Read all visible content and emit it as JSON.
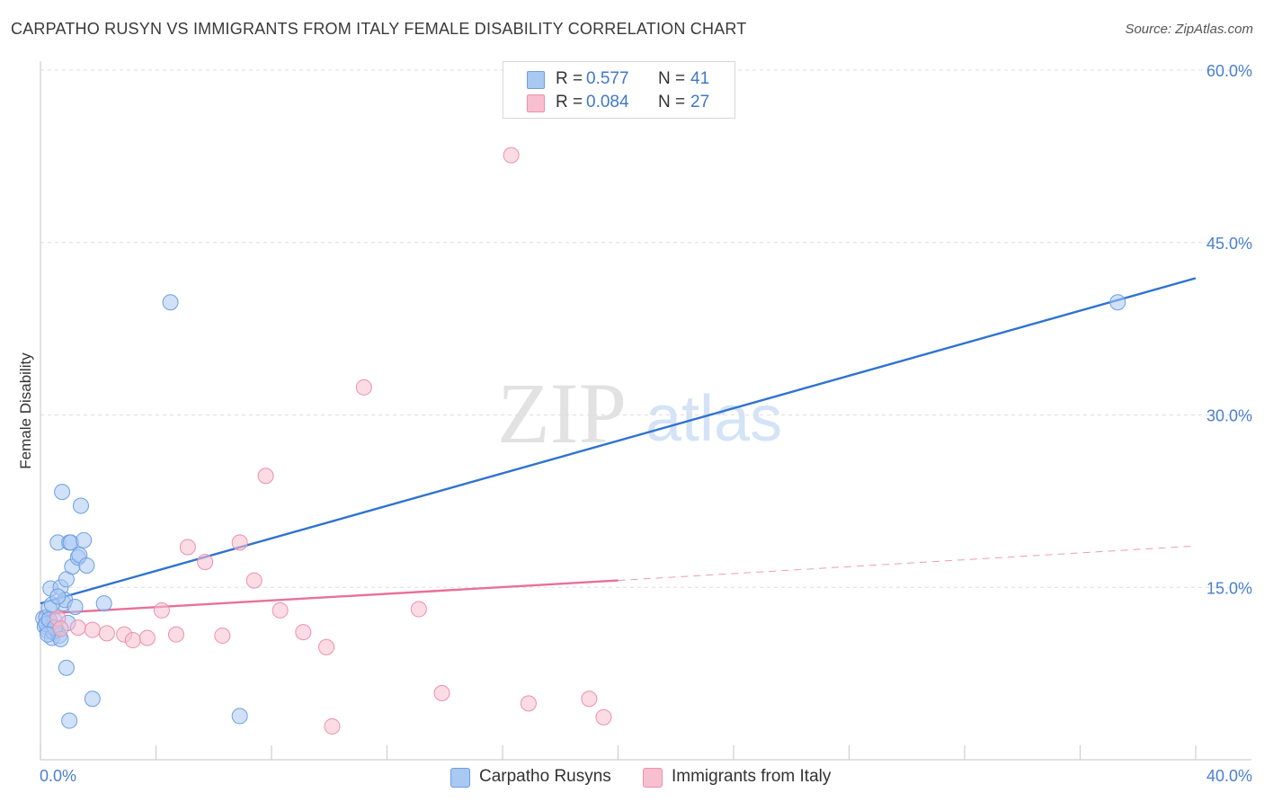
{
  "title": "CARPATHO RUSYN VS IMMIGRANTS FROM ITALY FEMALE DISABILITY CORRELATION CHART",
  "source": "Source: ZipAtlas.com",
  "watermark": {
    "zip": "ZIP",
    "atlas": "atlas"
  },
  "colors": {
    "blue_fill": "#a9c8f2",
    "blue_stroke": "#6d9fe0",
    "blue_line": "#2f73d0",
    "pink_fill": "#f8bfd0",
    "pink_stroke": "#ee8fae",
    "pink_line": "#e8709a",
    "tick_text": "#4a7fcf",
    "grid": "#dedede"
  },
  "legend": [
    {
      "r_label": "R =",
      "r_value": "0.577",
      "n_label": "N =",
      "n_value": "41"
    },
    {
      "r_label": "R =",
      "r_value": "0.084",
      "n_label": "N =",
      "n_value": "27"
    }
  ],
  "chart_data": {
    "type": "scatter",
    "title": "CARPATHO RUSYN VS IMMIGRANTS FROM ITALY FEMALE DISABILITY CORRELATION CHART",
    "xlabel": "",
    "ylabel": "Female Disability",
    "xlim": [
      0,
      40
    ],
    "ylim": [
      0,
      60
    ],
    "x_tick_labels": [
      "0.0%",
      "40.0%"
    ],
    "y_ticks": [
      15,
      30,
      45,
      60
    ],
    "y_tick_labels": [
      "15.0%",
      "30.0%",
      "45.0%",
      "60.0%"
    ],
    "grid": "horizontal dashed",
    "legend_position": "top-center",
    "series": [
      {
        "name": "Carpatho Rusyns",
        "color": "#a9c8f2",
        "points": [
          [
            0.1,
            12.3
          ],
          [
            0.15,
            11.6
          ],
          [
            0.2,
            12.4
          ],
          [
            0.25,
            11.2
          ],
          [
            0.3,
            13.2
          ],
          [
            0.35,
            14.9
          ],
          [
            0.4,
            10.6
          ],
          [
            0.45,
            11.1
          ],
          [
            0.5,
            12.1
          ],
          [
            0.55,
            11.3
          ],
          [
            0.6,
            18.9
          ],
          [
            0.65,
            10.8
          ],
          [
            0.7,
            15.0
          ],
          [
            0.75,
            23.3
          ],
          [
            0.8,
            13.6
          ],
          [
            0.85,
            13.9
          ],
          [
            0.9,
            15.7
          ],
          [
            0.95,
            11.9
          ],
          [
            1.0,
            18.9
          ],
          [
            1.05,
            18.9
          ],
          [
            1.1,
            16.8
          ],
          [
            1.2,
            13.3
          ],
          [
            1.3,
            17.6
          ],
          [
            1.35,
            17.8
          ],
          [
            1.4,
            22.1
          ],
          [
            1.5,
            19.1
          ],
          [
            1.6,
            16.9
          ],
          [
            2.2,
            13.6
          ],
          [
            0.9,
            8.0
          ],
          [
            1.8,
            5.3
          ],
          [
            1.0,
            3.4
          ],
          [
            4.5,
            39.8
          ],
          [
            6.9,
            3.8
          ],
          [
            37.3,
            39.8
          ],
          [
            0.2,
            11.8
          ],
          [
            0.3,
            12.2
          ],
          [
            0.5,
            11.5
          ],
          [
            0.7,
            10.5
          ],
          [
            0.4,
            13.5
          ],
          [
            0.6,
            14.2
          ],
          [
            0.25,
            10.9
          ]
        ]
      },
      {
        "name": "Immigrants from Italy",
        "color": "#f8bfd0",
        "points": [
          [
            0.6,
            12.3
          ],
          [
            0.7,
            11.4
          ],
          [
            1.3,
            11.5
          ],
          [
            1.8,
            11.3
          ],
          [
            2.3,
            11.0
          ],
          [
            2.9,
            10.9
          ],
          [
            3.2,
            10.4
          ],
          [
            3.7,
            10.6
          ],
          [
            4.2,
            13.0
          ],
          [
            4.7,
            10.9
          ],
          [
            5.1,
            18.5
          ],
          [
            5.7,
            17.2
          ],
          [
            6.3,
            10.8
          ],
          [
            6.9,
            18.9
          ],
          [
            7.4,
            15.6
          ],
          [
            7.8,
            24.7
          ],
          [
            8.3,
            13.0
          ],
          [
            9.1,
            11.1
          ],
          [
            9.9,
            9.8
          ],
          [
            10.1,
            2.9
          ],
          [
            11.2,
            32.4
          ],
          [
            13.1,
            13.1
          ],
          [
            13.9,
            5.8
          ],
          [
            16.3,
            52.6
          ],
          [
            16.9,
            4.9
          ],
          [
            19.0,
            5.3
          ],
          [
            19.5,
            3.7
          ]
        ]
      }
    ],
    "trendlines": [
      {
        "series": "Carpatho Rusyns",
        "x": [
          0,
          40
        ],
        "y": [
          13.6,
          41.9
        ],
        "style": "solid"
      },
      {
        "series": "Immigrants from Italy",
        "x": [
          0,
          20
        ],
        "y": [
          12.7,
          15.6
        ],
        "style": "solid"
      },
      {
        "series": "Immigrants from Italy",
        "x": [
          20,
          40
        ],
        "y": [
          15.6,
          18.6
        ],
        "style": "dashed"
      }
    ]
  }
}
